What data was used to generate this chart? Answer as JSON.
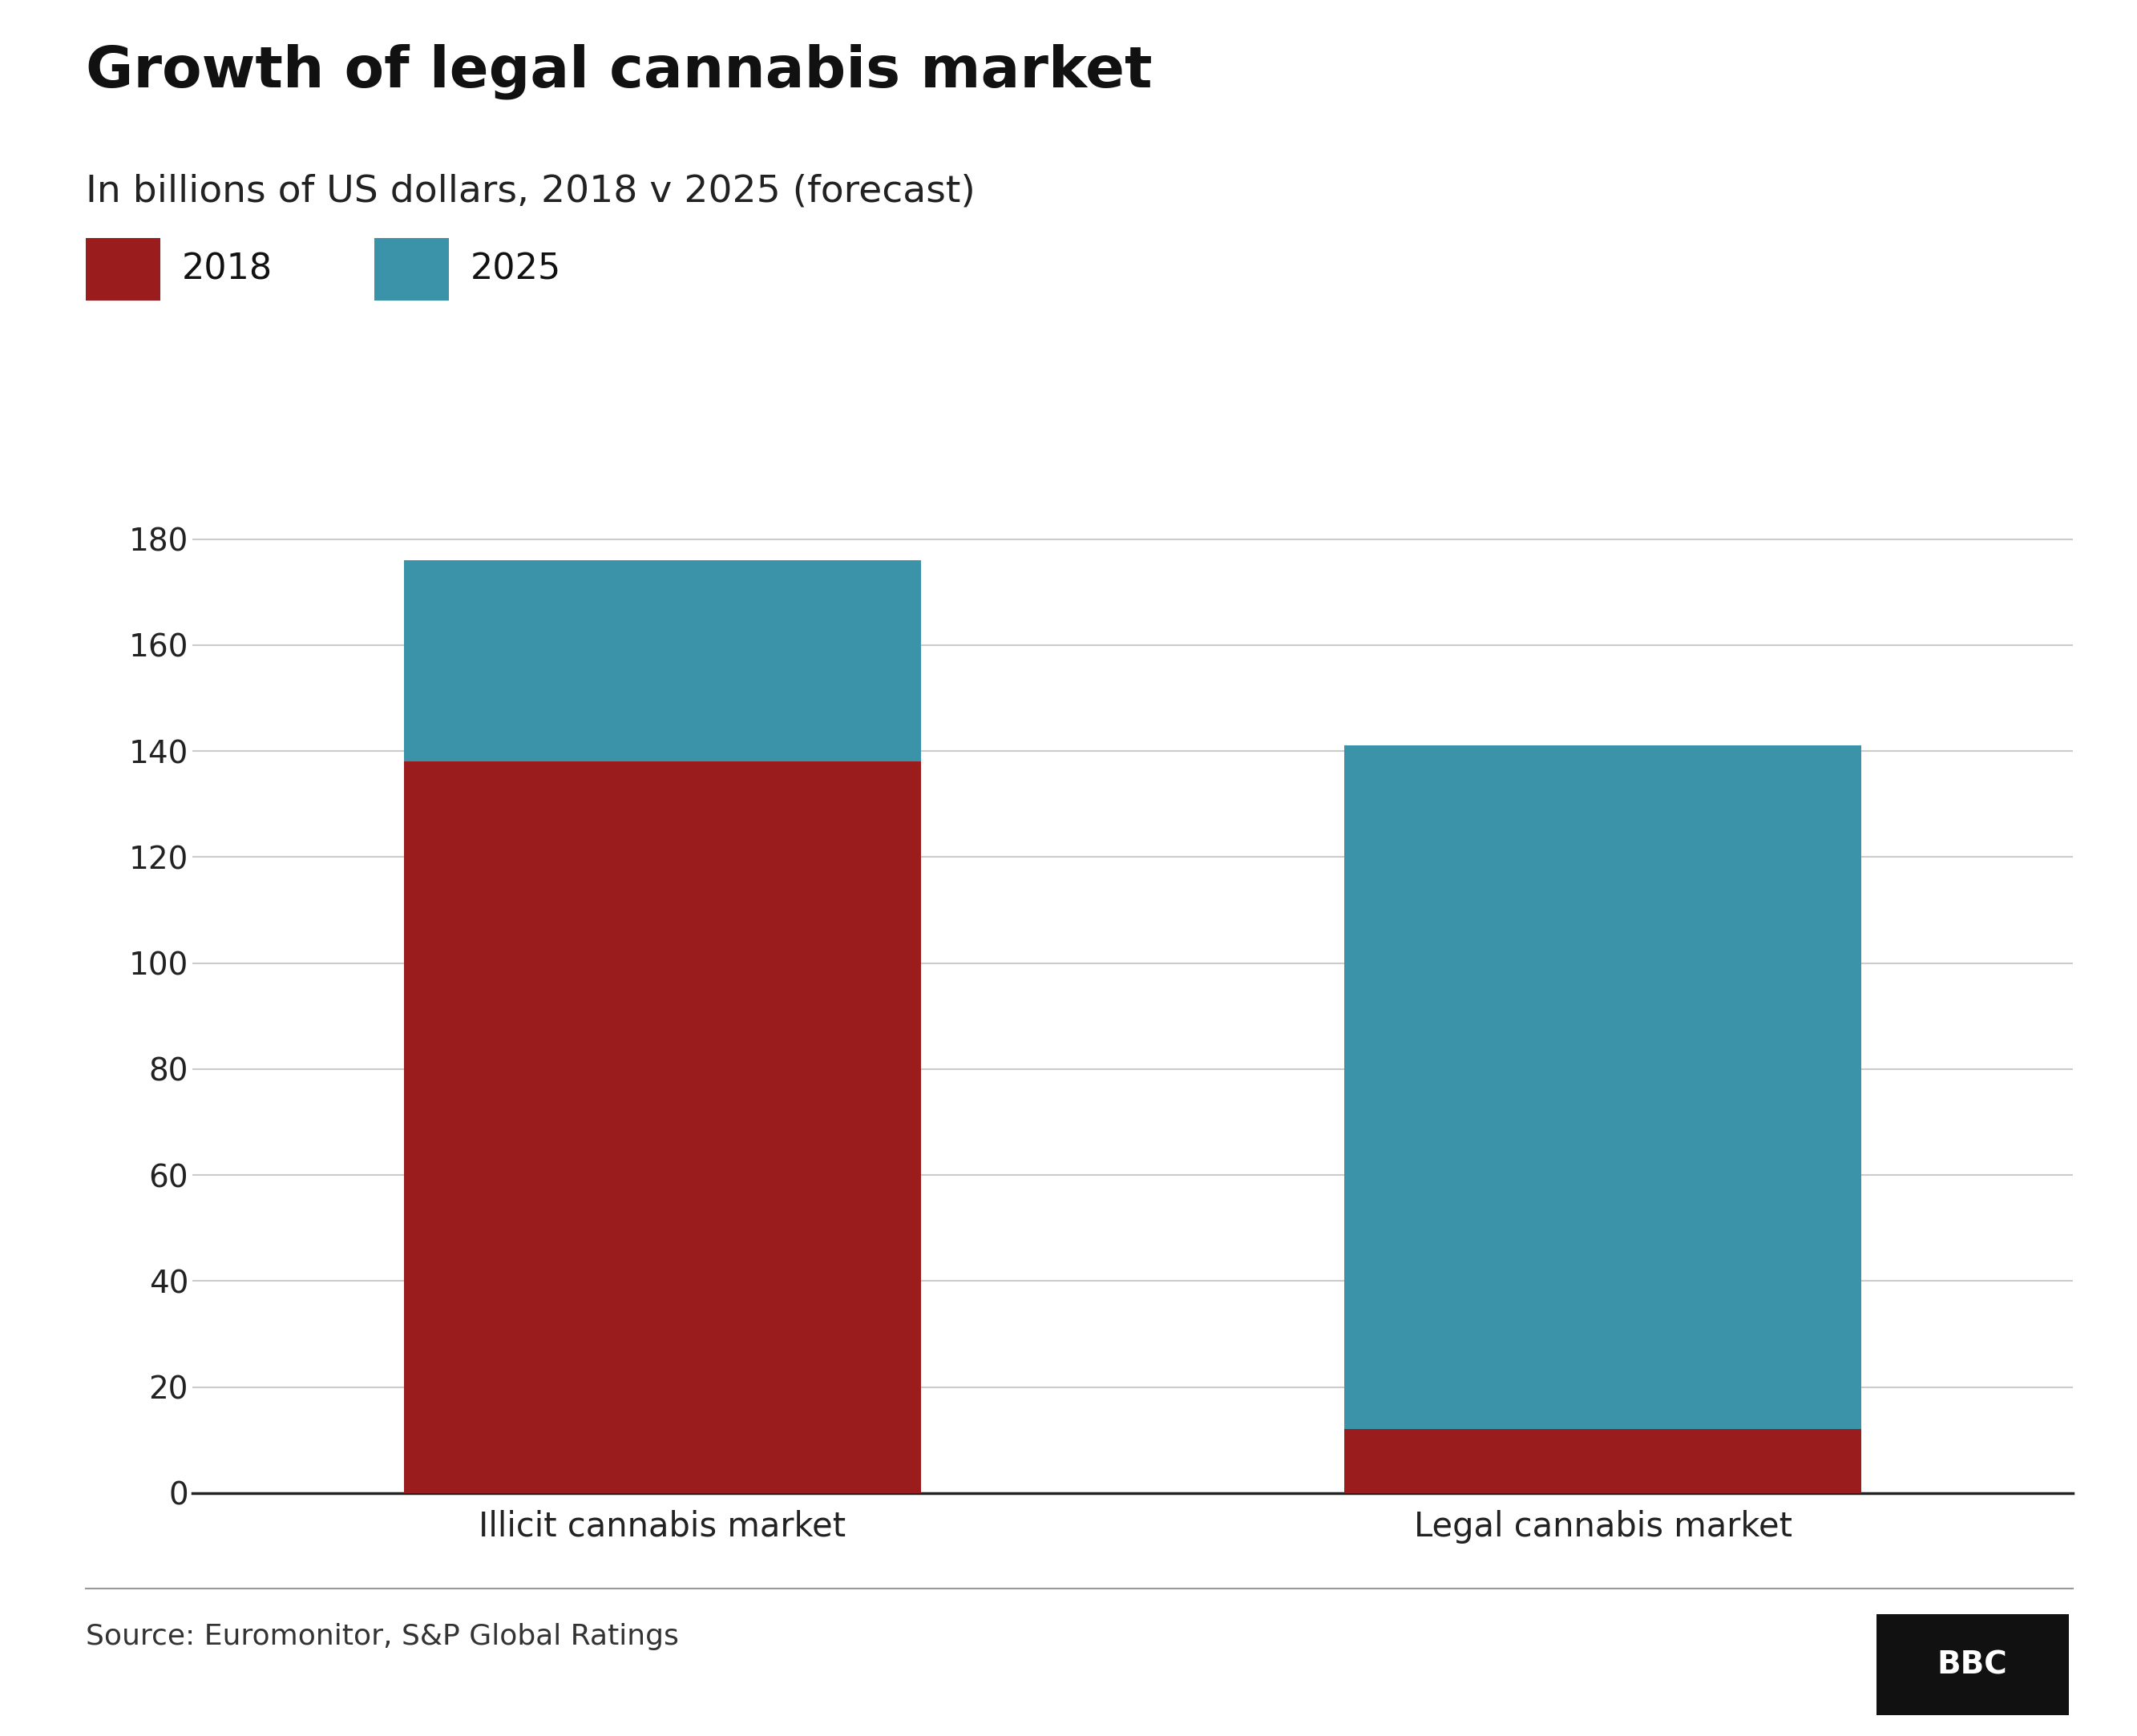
{
  "title": "Growth of legal cannabis market",
  "subtitle": "In billions of US dollars, 2018 v 2025 (forecast)",
  "categories": [
    "Illicit cannabis market",
    "Legal cannabis market"
  ],
  "values_2018": [
    138,
    12
  ],
  "values_2025_additional": [
    38,
    129
  ],
  "color_2018": "#9B1C1C",
  "color_2025": "#3A93A8",
  "ylim": [
    0,
    190
  ],
  "yticks": [
    0,
    20,
    40,
    60,
    80,
    100,
    120,
    140,
    160,
    180
  ],
  "legend_2018": "2018",
  "legend_2025": "2025",
  "source_text": "Source: Euromonitor, S&P Global Ratings",
  "bbc_text": "BBC",
  "title_fontsize": 52,
  "subtitle_fontsize": 34,
  "tick_fontsize": 28,
  "xlabel_fontsize": 30,
  "legend_fontsize": 32,
  "source_fontsize": 26,
  "background_color": "#ffffff",
  "grid_color": "#cccccc",
  "bar_width": 0.55
}
